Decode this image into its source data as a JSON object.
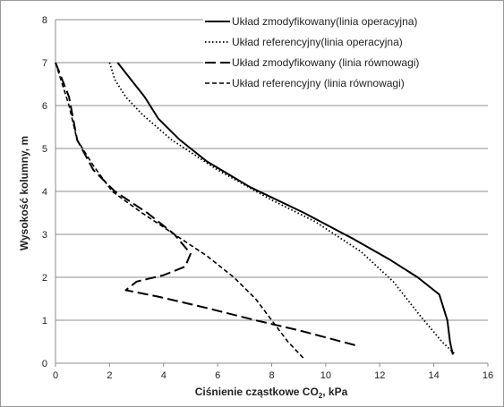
{
  "chart_data": {
    "type": "line",
    "xlabel": "Ciśnienie cząstkowe CO",
    "xlabel_sub": "2",
    "xlabel_unit": ", kPa",
    "ylabel": "Wysokość kolumny, m",
    "xlim": [
      0,
      16
    ],
    "ylim": [
      0,
      8
    ],
    "xticks": [
      "0",
      "2",
      "4",
      "6",
      "8",
      "10",
      "12",
      "14",
      "16"
    ],
    "yticks": [
      "0",
      "1",
      "2",
      "3",
      "4",
      "5",
      "6",
      "7",
      "8"
    ],
    "grid": "horizontal",
    "legend_position": "top-right",
    "series": [
      {
        "name": "Układ zmodyfikowany(linia operacyjna)",
        "style": "solid",
        "color": "#000000",
        "points": [
          [
            2.3,
            7.0
          ],
          [
            2.8,
            6.6
          ],
          [
            3.3,
            6.2
          ],
          [
            3.8,
            5.7
          ],
          [
            4.6,
            5.2
          ],
          [
            5.6,
            4.7
          ],
          [
            7.2,
            4.1
          ],
          [
            9.2,
            3.5
          ],
          [
            11.0,
            2.9
          ],
          [
            12.4,
            2.4
          ],
          [
            13.4,
            2.0
          ],
          [
            14.0,
            1.7
          ],
          [
            14.2,
            1.6
          ],
          [
            14.5,
            1.0
          ],
          [
            14.6,
            0.5
          ],
          [
            14.7,
            0.2
          ]
        ]
      },
      {
        "name": "Układ referencyjny(linia operacyjna)",
        "style": "dotted",
        "color": "#000000",
        "points": [
          [
            2.0,
            7.0
          ],
          [
            2.2,
            6.6
          ],
          [
            2.6,
            6.2
          ],
          [
            3.2,
            5.8
          ],
          [
            4.3,
            5.2
          ],
          [
            6.0,
            4.5
          ],
          [
            8.0,
            3.8
          ],
          [
            9.6,
            3.3
          ],
          [
            11.3,
            2.6
          ],
          [
            12.5,
            1.9
          ],
          [
            13.5,
            1.1
          ],
          [
            14.3,
            0.5
          ],
          [
            14.8,
            0.2
          ]
        ]
      },
      {
        "name": "Układ zmodyfikowany (linia równowagi)",
        "style": "long-dash",
        "color": "#000000",
        "points": [
          [
            0.0,
            7.0
          ],
          [
            0.5,
            6.2
          ],
          [
            0.8,
            5.2
          ],
          [
            1.4,
            4.5
          ],
          [
            2.2,
            4.0
          ],
          [
            3.4,
            3.5
          ],
          [
            4.4,
            3.0
          ],
          [
            5.0,
            2.55
          ],
          [
            4.8,
            2.25
          ],
          [
            4.0,
            2.05
          ],
          [
            3.0,
            1.9
          ],
          [
            2.6,
            1.7
          ],
          [
            3.8,
            1.55
          ],
          [
            5.5,
            1.3
          ],
          [
            7.4,
            1.0
          ],
          [
            9.1,
            0.75
          ],
          [
            11.2,
            0.4
          ]
        ]
      },
      {
        "name": "Układ referencyjny (linia równowagi)",
        "style": "short-dash",
        "color": "#000000",
        "points": [
          [
            0.0,
            7.0
          ],
          [
            0.5,
            6.0
          ],
          [
            0.8,
            5.2
          ],
          [
            1.4,
            4.6
          ],
          [
            2.1,
            4.0
          ],
          [
            3.2,
            3.5
          ],
          [
            4.4,
            3.0
          ],
          [
            5.6,
            2.5
          ],
          [
            6.6,
            2.0
          ],
          [
            7.4,
            1.5
          ],
          [
            8.0,
            1.0
          ],
          [
            8.6,
            0.5
          ],
          [
            9.2,
            0.1
          ]
        ]
      }
    ]
  }
}
